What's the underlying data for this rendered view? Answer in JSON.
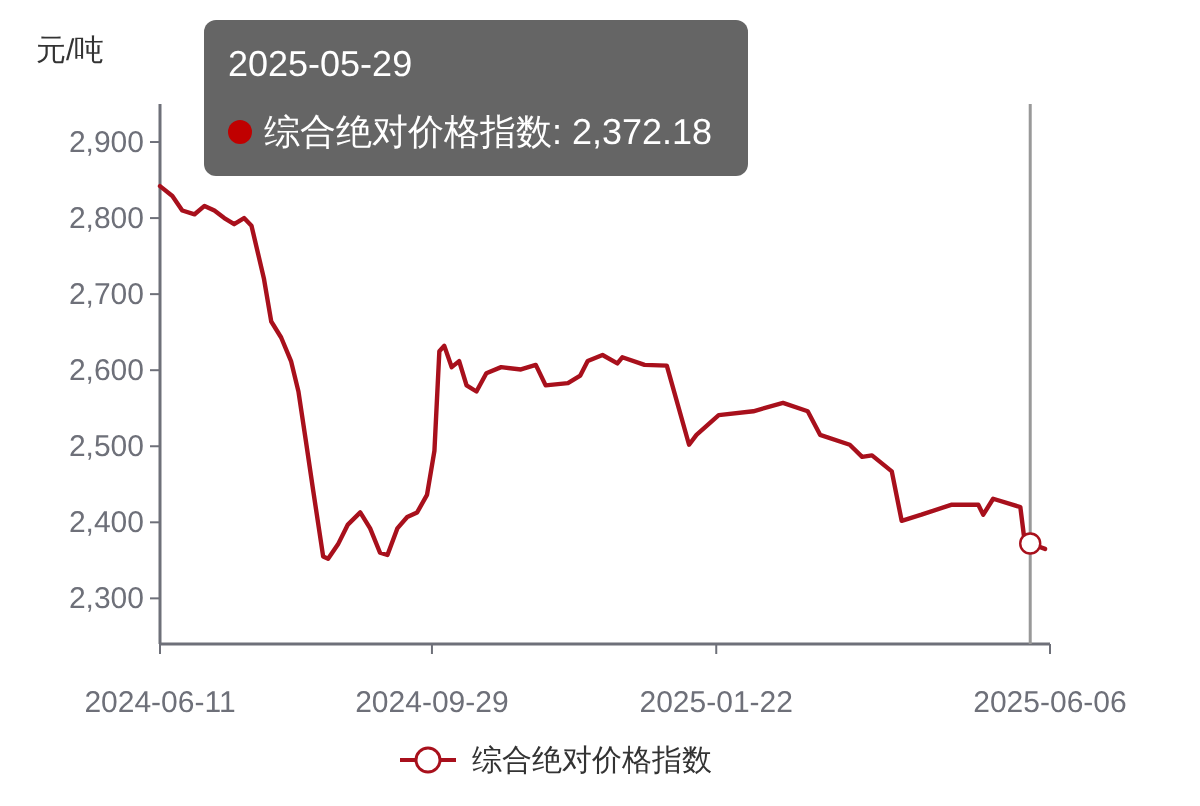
{
  "chart_data": {
    "type": "line",
    "ylabel": "元/吨",
    "x": [
      "2024-06-11",
      "2024-06-16",
      "2024-06-20",
      "2024-06-25",
      "2024-06-29",
      "2024-07-03",
      "2024-07-07",
      "2024-07-11",
      "2024-07-15",
      "2024-07-18",
      "2024-07-23",
      "2024-07-26",
      "2024-07-30",
      "2024-08-03",
      "2024-08-06",
      "2024-08-09",
      "2024-08-12",
      "2024-08-16",
      "2024-08-18",
      "2024-08-22",
      "2024-08-26",
      "2024-08-31",
      "2024-09-04",
      "2024-09-08",
      "2024-09-11",
      "2024-09-15",
      "2024-09-19",
      "2024-09-23",
      "2024-09-27",
      "2024-09-30",
      "2024-10-02",
      "2024-10-04",
      "2024-10-07",
      "2024-10-10",
      "2024-10-13",
      "2024-10-17",
      "2024-10-21",
      "2024-10-27",
      "2024-11-04",
      "2024-11-10",
      "2024-11-14",
      "2024-11-23",
      "2024-11-28",
      "2024-12-01",
      "2024-12-07",
      "2024-12-13",
      "2024-12-15",
      "2024-12-24",
      "2025-01-02",
      "2025-01-11",
      "2025-01-14",
      "2025-01-23",
      "2025-02-06",
      "2025-02-18",
      "2025-02-28",
      "2025-03-05",
      "2025-03-17",
      "2025-03-22",
      "2025-03-26",
      "2025-04-03",
      "2025-04-07",
      "2025-04-15",
      "2025-04-27",
      "2025-05-08",
      "2025-05-10",
      "2025-05-14",
      "2025-05-25",
      "2025-05-27",
      "2025-05-29",
      "2025-06-04"
    ],
    "series": [
      {
        "name": "综合绝对价格指数",
        "color": "#a8101c",
        "values": [
          2842,
          2829,
          2810,
          2805,
          2816,
          2810,
          2800,
          2792,
          2800,
          2790,
          2721,
          2664,
          2643,
          2612,
          2572,
          2507,
          2441,
          2355,
          2352,
          2371,
          2397,
          2413,
          2392,
          2360,
          2357,
          2392,
          2407,
          2413,
          2436,
          2494,
          2625,
          2632,
          2604,
          2612,
          2580,
          2572,
          2596,
          2604,
          2601,
          2607,
          2580,
          2583,
          2593,
          2612,
          2620,
          2609,
          2617,
          2607,
          2606,
          2502,
          2515,
          2541,
          2546,
          2557,
          2546,
          2515,
          2502,
          2486,
          2488,
          2467,
          2402,
          2410,
          2423,
          2423,
          2410,
          2431,
          2420,
          2368,
          2372.18,
          2365
        ]
      }
    ],
    "xlim": [
      "2024-06-11",
      "2025-06-06"
    ],
    "xticks": [
      "2024-06-11",
      "2024-09-29",
      "2025-01-22",
      "2025-06-06"
    ],
    "ylim": [
      2240,
      2950
    ],
    "yticks": [
      {
        "value": 2300,
        "label": "2,300"
      },
      {
        "value": 2400,
        "label": "2,400"
      },
      {
        "value": 2500,
        "label": "2,500"
      },
      {
        "value": 2600,
        "label": "2,600"
      },
      {
        "value": 2700,
        "label": "2,700"
      },
      {
        "value": 2800,
        "label": "2,800"
      },
      {
        "value": 2900,
        "label": "2,900"
      }
    ],
    "grid": false,
    "legend": "bottom",
    "marker": "none",
    "line_style": "solid",
    "ref_lines": [
      {
        "axis": "x",
        "value": "2025-05-29",
        "color": "#999999"
      }
    ],
    "annotations": [
      "2025-05-29",
      "综合绝对价格指数: 2,372.18"
    ]
  }
}
